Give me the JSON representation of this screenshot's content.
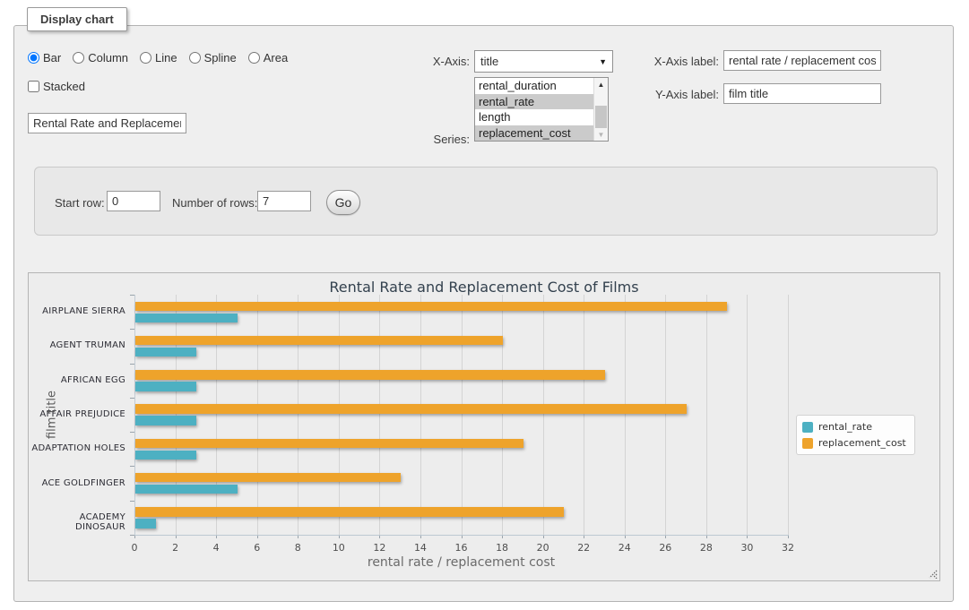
{
  "panel": {
    "legend_label": "Display chart"
  },
  "chart_controls": {
    "type_options": [
      {
        "label": "Bar",
        "checked": true
      },
      {
        "label": "Column",
        "checked": false
      },
      {
        "label": "Line",
        "checked": false
      },
      {
        "label": "Spline",
        "checked": false
      },
      {
        "label": "Area",
        "checked": false
      }
    ],
    "stacked_label": "Stacked",
    "stacked_checked": false,
    "chart_title_value": "Rental Rate and Replacement Cost of Films",
    "x_axis_label_text": "X-Axis:",
    "x_axis_selected": "title",
    "series_label_text": "Series:",
    "series_options": [
      {
        "label": "rental_duration",
        "selected": false
      },
      {
        "label": "rental_rate",
        "selected": true
      },
      {
        "label": "length",
        "selected": false
      },
      {
        "label": "replacement_cost",
        "selected": true
      }
    ],
    "x_axis_label_field": {
      "label": "X-Axis label:",
      "value": "rental rate / replacement cost"
    },
    "y_axis_label_field": {
      "label": "Y-Axis label:",
      "value": "film title"
    }
  },
  "rows_form": {
    "start_row_label": "Start row:",
    "start_row_value": "0",
    "number_of_rows_label": "Number of rows:",
    "number_of_rows_value": "7",
    "go_button_label": "Go"
  },
  "chart_data": {
    "type": "bar",
    "title": "Rental Rate and Replacement Cost of Films",
    "xlabel": "rental rate / replacement cost",
    "ylabel": "film title",
    "categories": [
      "AIRPLANE SIERRA",
      "AGENT TRUMAN",
      "AFRICAN EGG",
      "AFFAIR PREJUDICE",
      "ADAPTATION HOLES",
      "ACE GOLDFINGER",
      "ACADEMY DINOSAUR"
    ],
    "series": [
      {
        "name": "rental_rate",
        "color": "#4db0c2",
        "values": [
          4.99,
          2.99,
          2.99,
          2.99,
          2.99,
          4.99,
          0.99
        ]
      },
      {
        "name": "replacement_cost",
        "color": "#eea32b",
        "values": [
          28.99,
          17.99,
          22.99,
          26.99,
          18.99,
          12.99,
          20.99
        ]
      }
    ],
    "series_render_order": "reversed_top_to_bottom",
    "value_axis": {
      "min": 0,
      "max": 32,
      "tick_step": 2
    },
    "grid": true,
    "legend_position": "right-middle"
  }
}
